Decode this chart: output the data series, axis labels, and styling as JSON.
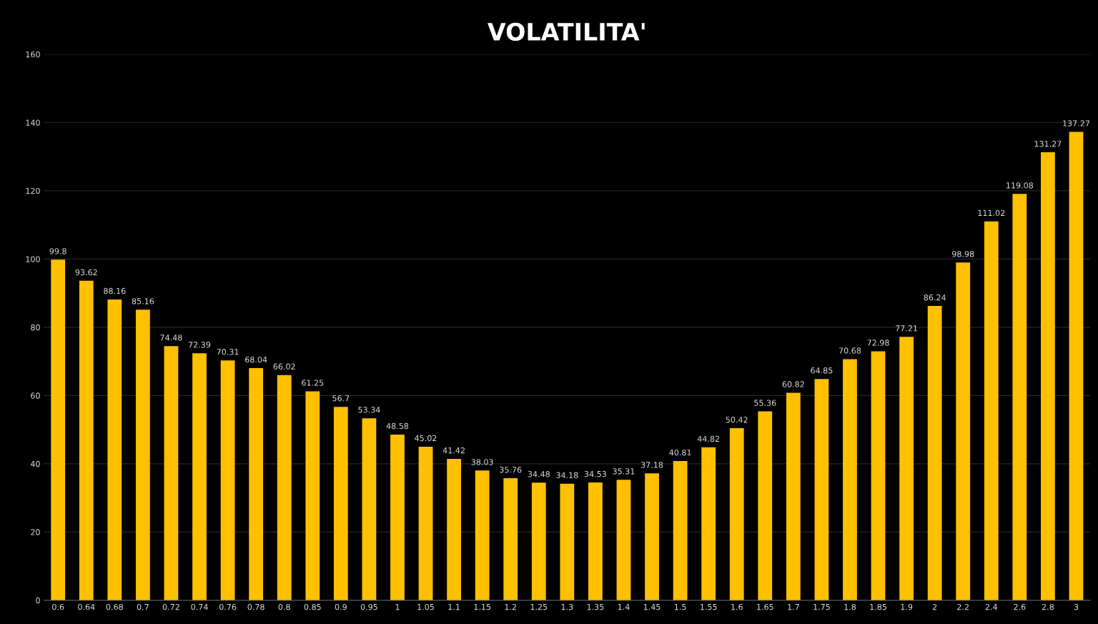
{
  "chart_data": {
    "type": "bar",
    "title": "VOLATILITA'",
    "categories": [
      "0.6",
      "0.64",
      "0.68",
      "0.7",
      "0.72",
      "0.74",
      "0.76",
      "0.78",
      "0.8",
      "0.85",
      "0.9",
      "0.95",
      "1",
      "1.05",
      "1.1",
      "1.15",
      "1.2",
      "1.25",
      "1.3",
      "1.35",
      "1.4",
      "1.45",
      "1.5",
      "1.55",
      "1.6",
      "1.65",
      "1.7",
      "1.75",
      "1.8",
      "1.85",
      "1.9",
      "2",
      "2.2",
      "2.4",
      "2.6",
      "2.8",
      "3"
    ],
    "values": [
      99.8,
      93.62,
      88.16,
      85.16,
      74.48,
      72.39,
      70.31,
      68.04,
      66.02,
      61.25,
      56.7,
      53.34,
      48.58,
      45.02,
      41.42,
      38.03,
      35.76,
      34.48,
      34.18,
      34.53,
      35.31,
      37.18,
      40.81,
      44.82,
      50.42,
      55.36,
      60.82,
      64.85,
      70.68,
      72.98,
      77.21,
      86.24,
      98.98,
      111.02,
      119.08,
      131.27,
      137.27
    ],
    "color": "#ffc000",
    "ylim": [
      0,
      160
    ],
    "yticks": [
      0,
      20,
      40,
      60,
      80,
      100,
      120,
      140,
      160
    ],
    "grid": "y",
    "data_labels": true
  }
}
